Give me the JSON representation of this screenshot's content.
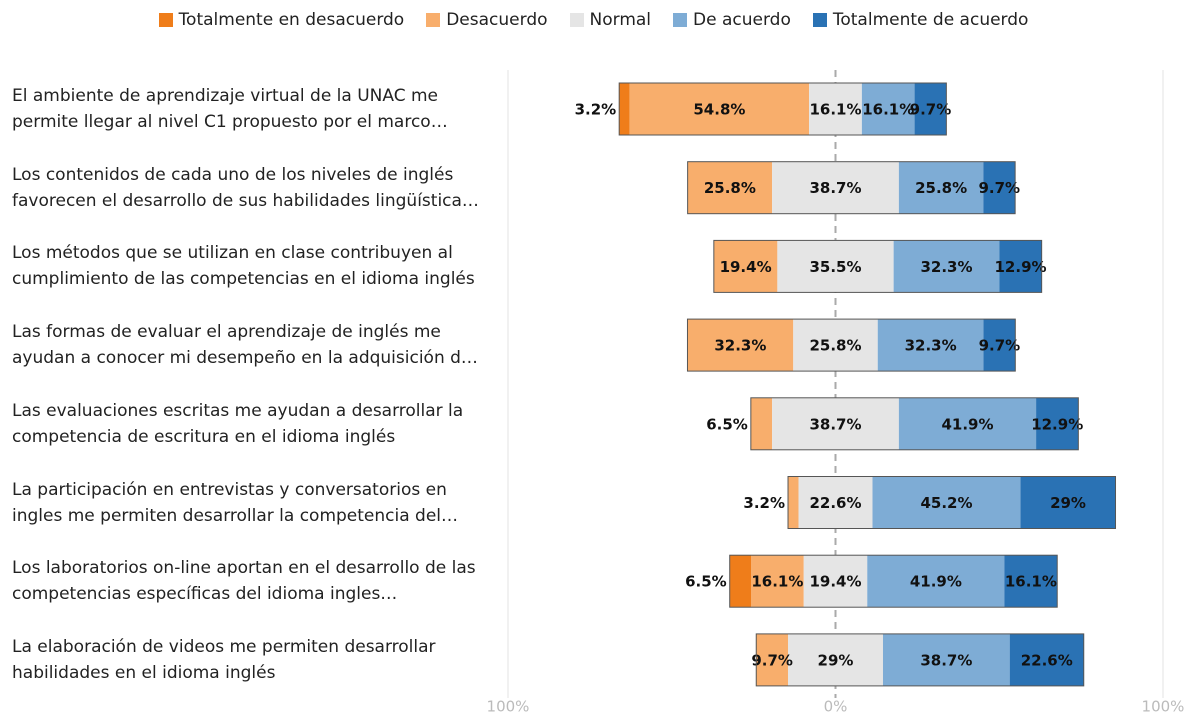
{
  "chart_data": {
    "type": "diverging_stacked_bar",
    "categories": [
      "El ambiente de aprendizaje virtual de la UNAC me permite llegar al nivel C1 propuesto por el marco…",
      "Los contenidos de cada uno de los niveles de inglés favorecen el desarrollo de sus habilidades lingüística…",
      "Los métodos que se utilizan en clase contribuyen al cumplimiento de las competencias en el idioma inglés",
      "Las formas de evaluar el aprendizaje de inglés me ayudan a conocer mi desempeño en la adquisición d…",
      "Las evaluaciones escritas me ayudan a desarrollar la competencia de escritura en el idioma inglés",
      "La participación en entrevistas y conversatorios en ingles me permiten desarrollar la competencia del…",
      "Los laboratorios on-line aportan en el desarrollo de las competencias específicas del idioma ingles…",
      "La elaboración de videos me permiten desarrollar habilidades en el idioma inglés"
    ],
    "series": [
      {
        "name": "Totalmente en desacuerdo",
        "color": "#ef7d1a",
        "values": [
          3.2,
          0,
          0,
          0,
          0,
          0,
          6.5,
          0
        ],
        "value_labels": [
          "3.2%",
          null,
          null,
          null,
          null,
          null,
          "6.5%",
          null
        ]
      },
      {
        "name": "Desacuerdo",
        "color": "#f8ae6c",
        "values": [
          54.8,
          25.8,
          19.4,
          32.3,
          6.5,
          3.2,
          16.1,
          9.7
        ],
        "value_labels": [
          "54.8%",
          "25.8%",
          "19.4%",
          "32.3%",
          "6.5%",
          "3.2%",
          "16.1%",
          "9.7%"
        ]
      },
      {
        "name": "Normal",
        "color": "#e5e5e5",
        "values": [
          16.1,
          38.7,
          35.5,
          25.8,
          38.7,
          22.6,
          19.4,
          29
        ],
        "value_labels": [
          "16.1%",
          "38.7%",
          "35.5%",
          "25.8%",
          "38.7%",
          "22.6%",
          "19.4%",
          "29%"
        ]
      },
      {
        "name": "De acuerdo",
        "color": "#7eacd5",
        "values": [
          16.1,
          25.8,
          32.3,
          32.3,
          41.9,
          45.2,
          41.9,
          38.7
        ],
        "value_labels": [
          "16.1%",
          "25.8%",
          "32.3%",
          "32.3%",
          "41.9%",
          "45.2%",
          "41.9%",
          "38.7%"
        ]
      },
      {
        "name": "Totalmente de acuerdo",
        "color": "#2a72b4",
        "values": [
          9.7,
          9.7,
          12.9,
          9.7,
          12.9,
          29,
          16.1,
          22.6
        ],
        "value_labels": [
          "9.7%",
          "9.7%",
          "12.9%",
          "9.7%",
          "12.9%",
          "29%",
          "16.1%",
          "22.6%"
        ]
      }
    ],
    "center_series": 2,
    "xlim": [
      -100,
      100
    ],
    "xticks": [
      {
        "value": -100,
        "label": "100%"
      },
      {
        "value": 0,
        "label": "0%"
      },
      {
        "value": 100,
        "label": "100%"
      }
    ],
    "legend": "top",
    "grid": true
  }
}
